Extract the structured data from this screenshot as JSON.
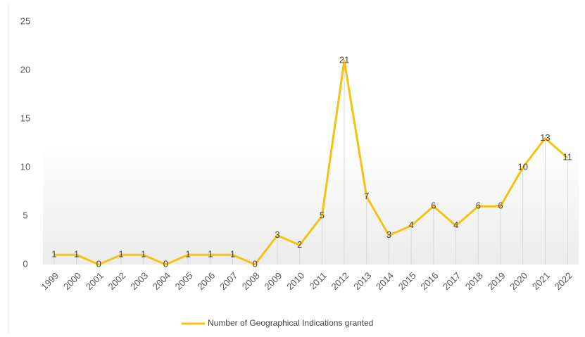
{
  "chart_data": {
    "type": "line",
    "categories": [
      "1999",
      "2000",
      "2001",
      "2002",
      "2003",
      "2004",
      "2005",
      "2006",
      "2007",
      "2008",
      "2009",
      "2010",
      "2011",
      "2012",
      "2013",
      "2014",
      "2015",
      "2016",
      "2017",
      "2018",
      "2019",
      "2020",
      "2021",
      "2022"
    ],
    "series": [
      {
        "name": "Number of Geographical Indications granted",
        "color": "#f5c211",
        "values": [
          1,
          1,
          0,
          1,
          1,
          0,
          1,
          1,
          1,
          0,
          3,
          2,
          5,
          21,
          7,
          3,
          4,
          6,
          4,
          6,
          6,
          10,
          13,
          11
        ]
      }
    ],
    "ylim": [
      0,
      25
    ],
    "yticks": [
      0,
      5,
      10,
      15,
      20,
      25
    ],
    "legend": "bottom"
  }
}
